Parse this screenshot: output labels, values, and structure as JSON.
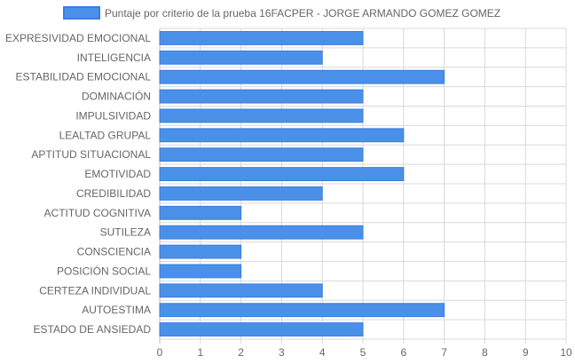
{
  "chart_data": {
    "type": "bar",
    "orientation": "horizontal",
    "categories": [
      "EXPRESIVIDAD EMOCIONAL",
      "INTELIGENCIA",
      "ESTABILIDAD EMOCIONAL",
      "DOMINACIÓN",
      "IMPULSIVIDAD",
      "LEALTAD GRUPAL",
      "APTITUD SITUACIONAL",
      "EMOTIVIDAD",
      "CREDIBILIDAD",
      "ACTITUD COGNITIVA",
      "SUTILEZA",
      "CONSCIENCIA",
      "POSICIÓN SOCIAL",
      "CERTEZA INDIVIDUAL",
      "AUTOESTIMA",
      "ESTADO DE ANSIEDAD"
    ],
    "series": [
      {
        "name": "Puntaje por criterio de la prueba 16FACPER - JORGE ARMANDO GOMEZ GOMEZ",
        "values": [
          5,
          4,
          7,
          5,
          5,
          6,
          5,
          6,
          4,
          2,
          5,
          2,
          2,
          4,
          7,
          5
        ]
      }
    ],
    "xlim": [
      0,
      10
    ],
    "xticks": [
      "0",
      "1",
      "2",
      "3",
      "4",
      "5",
      "6",
      "7",
      "8",
      "9",
      "10"
    ],
    "grid": true,
    "legend_position": "top",
    "colors": {
      "bar_fill": "#4a90e8",
      "bar_stroke": "#3a7ee0",
      "grid": "#d9d9d9",
      "axis": "#bbbbbb",
      "text": "#666666"
    }
  }
}
